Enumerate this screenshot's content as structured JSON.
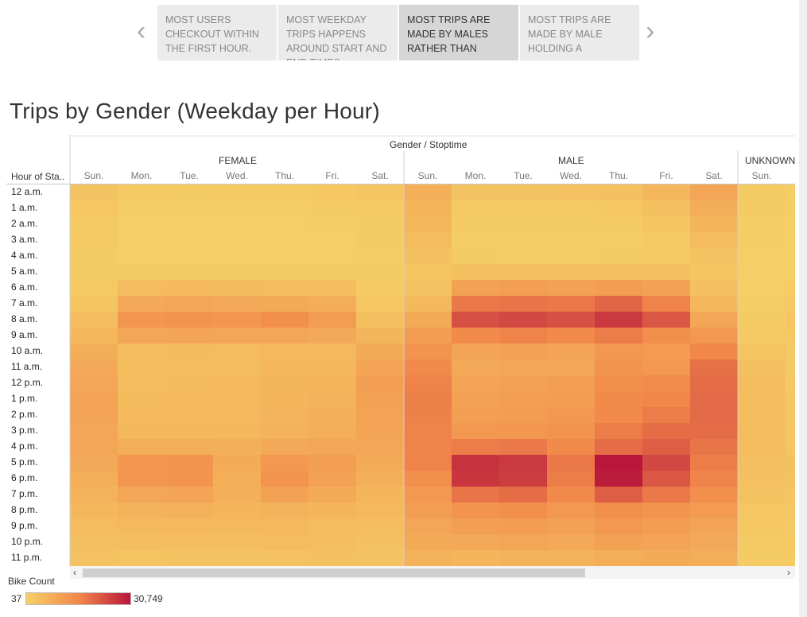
{
  "story": {
    "points": [
      {
        "label": "MOST USERS CHECKOUT WITHIN THE FIRST HOUR.",
        "active": false
      },
      {
        "label": "MOST WEEKDAY TRIPS HAPPENS AROUND START AND END TIMES",
        "active": false
      },
      {
        "label": "MOST TRIPS ARE MADE BY MALES RATHER THAN",
        "active": true
      },
      {
        "label": "MOST TRIPS ARE MADE BY MALE HOLDING A",
        "active": false
      }
    ],
    "prev_icon": "chevron-left-icon",
    "next_icon": "chevron-right-icon"
  },
  "title": "Trips by Gender (Weekday per Hour)",
  "header": {
    "column_group_title": "Gender / Stoptime",
    "row_header": "Hour of Sta..",
    "genders": [
      "FEMALE",
      "MALE",
      "UNKNOWN"
    ],
    "days": [
      "Sun.",
      "Mon.",
      "Tue.",
      "Wed.",
      "Thu.",
      "Fri.",
      "Sat."
    ]
  },
  "legend": {
    "title": "Bike Count",
    "min_label": "37",
    "max_label": "30,749"
  },
  "colors": {
    "low": "#f5d166",
    "mid": "#f2884a",
    "high": "#b9163b"
  },
  "chart_data": {
    "type": "heatmap",
    "title": "Trips by Gender (Weekday per Hour)",
    "x_group_label": "Gender / Stoptime",
    "y_label": "Hour of Sta..",
    "hours": [
      "12 a.m.",
      "1 a.m.",
      "2 a.m.",
      "3 a.m.",
      "4 a.m.",
      "5 a.m.",
      "6 a.m.",
      "7 a.m.",
      "8 a.m.",
      "9 a.m.",
      "10 a.m.",
      "11 a.m.",
      "12 p.m.",
      "1 p.m.",
      "2 p.m.",
      "3 p.m.",
      "4 p.m.",
      "5 p.m.",
      "6 p.m.",
      "7 p.m.",
      "8 p.m.",
      "9 p.m.",
      "10 p.m.",
      "11 p.m."
    ],
    "days": [
      "Sun.",
      "Mon.",
      "Tue.",
      "Wed.",
      "Thu.",
      "Fri.",
      "Sat."
    ],
    "value_range": [
      37,
      30749
    ],
    "series": [
      {
        "name": "FEMALE",
        "values": [
          [
            3000,
            1500,
            1400,
            1500,
            1500,
            2000,
            2500
          ],
          [
            2300,
            900,
            800,
            900,
            900,
            1200,
            1800
          ],
          [
            1800,
            600,
            500,
            500,
            600,
            800,
            1400
          ],
          [
            1500,
            500,
            400,
            400,
            500,
            600,
            1100
          ],
          [
            1200,
            500,
            400,
            400,
            500,
            500,
            900
          ],
          [
            1200,
            1400,
            1300,
            1300,
            1300,
            1200,
            1000
          ],
          [
            1500,
            4500,
            4800,
            4600,
            4400,
            4000,
            1500
          ],
          [
            2500,
            8500,
            8800,
            8400,
            8200,
            7500,
            2300
          ],
          [
            4000,
            12500,
            13000,
            12500,
            14000,
            11000,
            3800
          ],
          [
            5500,
            9000,
            9500,
            9000,
            9000,
            8500,
            5800
          ],
          [
            7500,
            4500,
            4600,
            4500,
            5000,
            5000,
            8000
          ],
          [
            8500,
            4000,
            4100,
            4200,
            5500,
            5500,
            9500
          ],
          [
            9000,
            4500,
            4600,
            4800,
            5800,
            6000,
            10500
          ],
          [
            9500,
            4700,
            4800,
            5000,
            6000,
            6500,
            10000
          ],
          [
            9500,
            4800,
            4900,
            5200,
            6200,
            7000,
            9800
          ],
          [
            9000,
            5300,
            5400,
            5600,
            6500,
            7500,
            9500
          ],
          [
            9000,
            7500,
            7600,
            7000,
            8500,
            9000,
            9000
          ],
          [
            8500,
            12500,
            12800,
            8000,
            12000,
            10500,
            8000
          ],
          [
            7500,
            12500,
            12800,
            7500,
            13000,
            10000,
            7000
          ],
          [
            6500,
            9000,
            9200,
            7200,
            10000,
            8000,
            6000
          ],
          [
            5500,
            6500,
            6700,
            6000,
            6500,
            6000,
            5000
          ],
          [
            4500,
            5000,
            5200,
            5000,
            5000,
            4500,
            4000
          ],
          [
            3800,
            4000,
            4100,
            4000,
            4500,
            4200,
            3500
          ],
          [
            3200,
            2800,
            2900,
            3000,
            3200,
            3500,
            3000
          ]
        ]
      },
      {
        "name": "MALE",
        "values": [
          [
            7000,
            3000,
            3000,
            3200,
            3500,
            5500,
            9000
          ],
          [
            6000,
            1800,
            1700,
            1800,
            2000,
            3500,
            7500
          ],
          [
            5500,
            1200,
            1100,
            1200,
            1300,
            2500,
            6000
          ],
          [
            4500,
            900,
            800,
            900,
            900,
            1800,
            4500
          ],
          [
            3500,
            1000,
            900,
            900,
            1000,
            1500,
            3000
          ],
          [
            2500,
            3500,
            3400,
            3400,
            3500,
            3500,
            2500
          ],
          [
            3000,
            10000,
            10500,
            10000,
            11000,
            10000,
            3500
          ],
          [
            5000,
            17500,
            18000,
            17500,
            20000,
            16000,
            5500
          ],
          [
            8000,
            23000,
            24000,
            23000,
            26000,
            22000,
            9000
          ],
          [
            11000,
            15000,
            16000,
            15000,
            17000,
            14000,
            12000
          ],
          [
            13000,
            9500,
            10000,
            9500,
            12000,
            11500,
            15500
          ],
          [
            15000,
            8500,
            9000,
            9000,
            13000,
            12000,
            18500
          ],
          [
            16000,
            9500,
            10000,
            10500,
            14000,
            14500,
            19000
          ],
          [
            16500,
            10000,
            10500,
            11000,
            15000,
            15500,
            19500
          ],
          [
            16500,
            10500,
            11000,
            12000,
            15000,
            17000,
            19500
          ],
          [
            16000,
            12000,
            12500,
            13000,
            17000,
            19000,
            19000
          ],
          [
            16000,
            17000,
            17500,
            15000,
            19000,
            21000,
            18000
          ],
          [
            16000,
            27000,
            26000,
            17500,
            30749,
            24000,
            17000
          ],
          [
            14000,
            26500,
            25500,
            17000,
            30000,
            22000,
            16000
          ],
          [
            12000,
            18000,
            19000,
            15000,
            21000,
            17500,
            14000
          ],
          [
            10500,
            13000,
            14000,
            12000,
            14000,
            13000,
            11500
          ],
          [
            9000,
            10500,
            11000,
            10000,
            12000,
            11000,
            9500
          ],
          [
            8000,
            8500,
            9000,
            8500,
            10000,
            9500,
            8500
          ],
          [
            6500,
            6000,
            6500,
            6500,
            7500,
            8000,
            7500
          ]
        ]
      },
      {
        "name": "UNKNOWN",
        "values": [
          [
            1200,
            600
          ],
          [
            1000,
            500
          ],
          [
            900,
            400
          ],
          [
            800,
            300
          ],
          [
            700,
            300
          ],
          [
            600,
            500
          ],
          [
            700,
            1200
          ],
          [
            900,
            1800
          ],
          [
            1200,
            2500
          ],
          [
            1800,
            2000
          ],
          [
            2800,
            1800
          ],
          [
            3500,
            1800
          ],
          [
            4000,
            2000
          ],
          [
            4200,
            2100
          ],
          [
            4300,
            2200
          ],
          [
            4200,
            2300
          ],
          [
            4000,
            2600
          ],
          [
            3800,
            3300
          ],
          [
            3400,
            3200
          ],
          [
            3000,
            2600
          ],
          [
            2400,
            2200
          ],
          [
            2000,
            1800
          ],
          [
            1700,
            1500
          ],
          [
            1400,
            1200
          ]
        ]
      }
    ],
    "legend": {
      "title": "Bike Count",
      "min": 37,
      "max": 30749
    }
  }
}
